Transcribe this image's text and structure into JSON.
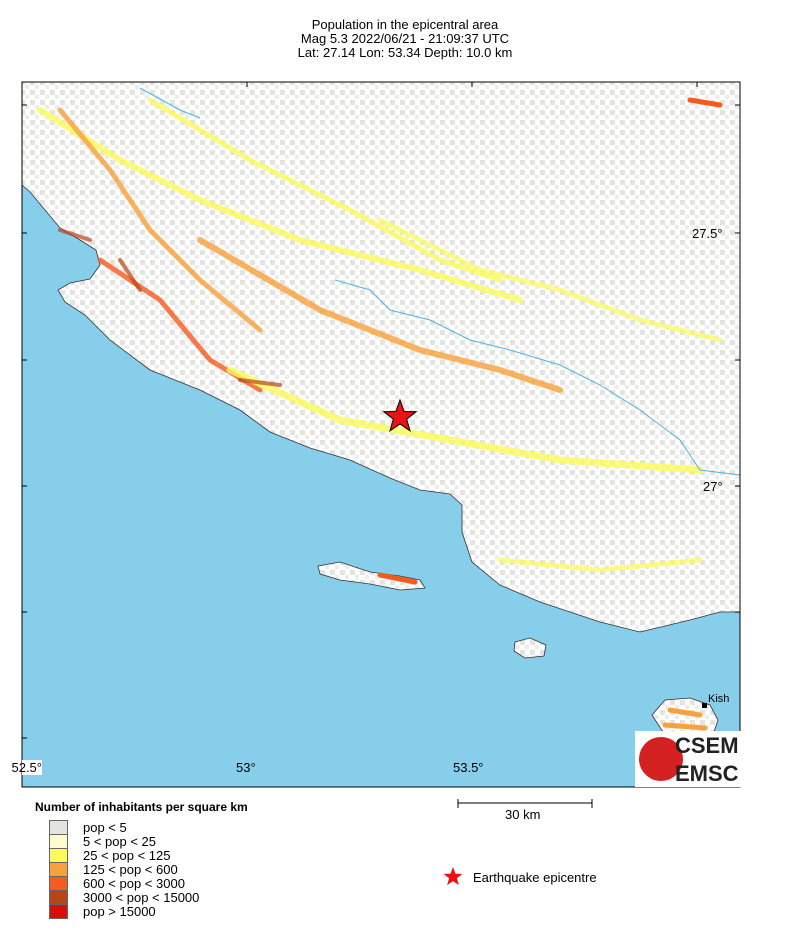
{
  "title": {
    "line1": "Population in the epicentral area",
    "line2": "Mag 5.3  2022/06/21 - 21:09:37 UTC",
    "line3": "Lat: 27.14    Lon:  53.34     Depth:  10.0 km"
  },
  "axes": {
    "lon_labels": [
      "52.5°",
      "53°",
      "53.5°"
    ],
    "lat_labels": [
      "27.5°",
      "27°"
    ]
  },
  "places": [
    {
      "name": "Kish"
    }
  ],
  "scale_bar": {
    "label": "30 km"
  },
  "legend": {
    "title": "Number of inhabitants per square km",
    "items": [
      {
        "label": "pop < 5",
        "color": "#e3e3e1"
      },
      {
        "label": "5 < pop < 25",
        "color": "#fbfbcf"
      },
      {
        "label": "25 < pop < 125",
        "color": "#fbfb5a"
      },
      {
        "label": "125 < pop < 600",
        "color": "#f9a13a"
      },
      {
        "label": "600 < pop < 3000",
        "color": "#f55a1e"
      },
      {
        "label": "3000 < pop < 15000",
        "color": "#b84515"
      },
      {
        "label": "pop > 15000",
        "color": "#d90d0d"
      }
    ]
  },
  "epicentre": {
    "label": "Earthquake epicentre",
    "color": "#ee1111",
    "lat": 27.14,
    "lon": 53.34
  },
  "colors": {
    "sea": "#87ceeb",
    "river": "#4fb4e6"
  },
  "logo": {
    "top": "CSEM",
    "bottom": "EMSC"
  }
}
